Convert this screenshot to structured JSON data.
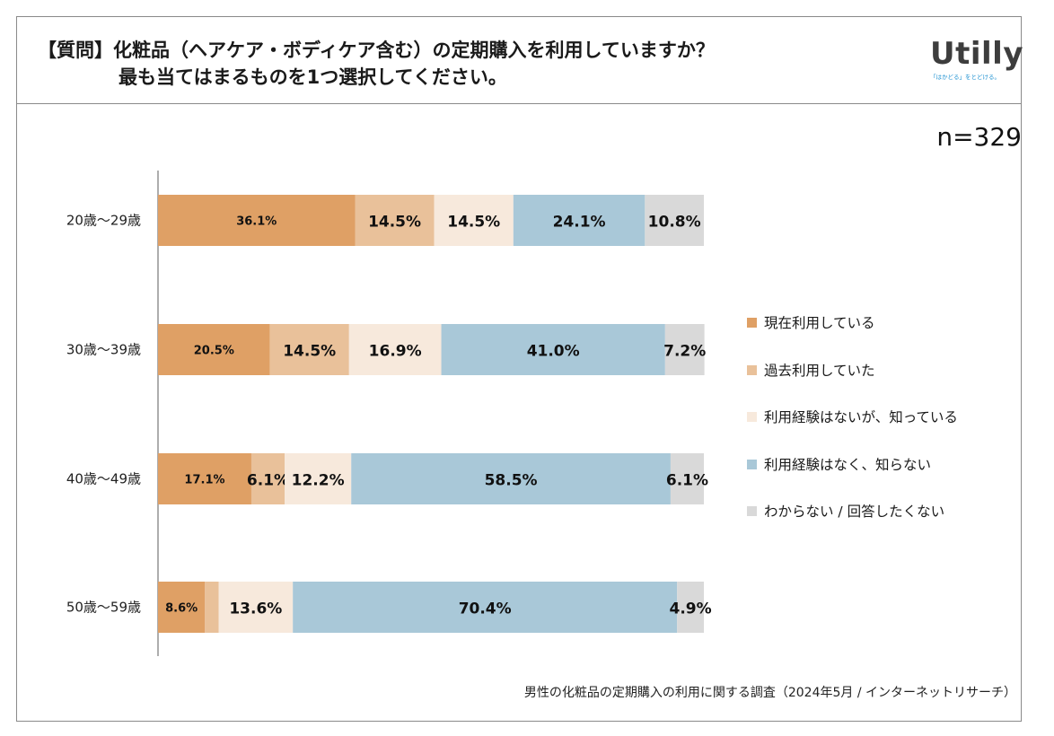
{
  "header": {
    "question_line1": "【質問】化粧品（ヘアケア・ボディケア含む）の定期購入を利用していますか？",
    "question_line2": "最も当てはまるものを1つ選択してください。"
  },
  "logo": {
    "text": "Utilly",
    "tagline": "「はかどる」をとどける。"
  },
  "sample_size": "n=329",
  "footnote": "男性の化粧品の定期購入の利用に関する調査（2024年5月 / インターネットリサーチ）",
  "chart_data": {
    "type": "bar",
    "orientation": "horizontal",
    "stacked": true,
    "categories": [
      "20歳～29歳",
      "30歳～39歳",
      "40歳～49歳",
      "50歳～59歳"
    ],
    "series": [
      {
        "name": "現在利用している",
        "color": "#dfa065",
        "values": [
          36.1,
          20.5,
          17.1,
          8.6
        ],
        "labels": [
          "36.1%",
          "20.5%",
          "17.1%",
          "8.6%"
        ]
      },
      {
        "name": "過去利用していた",
        "color": "#e9c19a",
        "values": [
          14.5,
          14.5,
          6.1,
          2.5
        ],
        "labels": [
          "14.5%",
          "14.5%",
          "6.1%",
          ""
        ]
      },
      {
        "name": "利用経験はないが、知っている",
        "color": "#f7e9dc",
        "values": [
          14.5,
          16.9,
          12.2,
          13.6
        ],
        "labels": [
          "14.5%",
          "16.9%",
          "12.2%",
          "13.6%"
        ]
      },
      {
        "name": "利用経験はなく、知らない",
        "color": "#a9c8d8",
        "values": [
          24.1,
          41.0,
          58.5,
          70.4
        ],
        "labels": [
          "24.1%",
          "41.0%",
          "58.5%",
          "70.4%"
        ]
      },
      {
        "name": "わからない / 回答したくない",
        "color": "#d9d9d9",
        "values": [
          10.8,
          7.2,
          6.1,
          4.9
        ],
        "labels": [
          "10.8%",
          "7.2%",
          "6.1%",
          "4.9%"
        ]
      }
    ],
    "xlim": [
      0,
      100
    ],
    "legend": "right"
  }
}
